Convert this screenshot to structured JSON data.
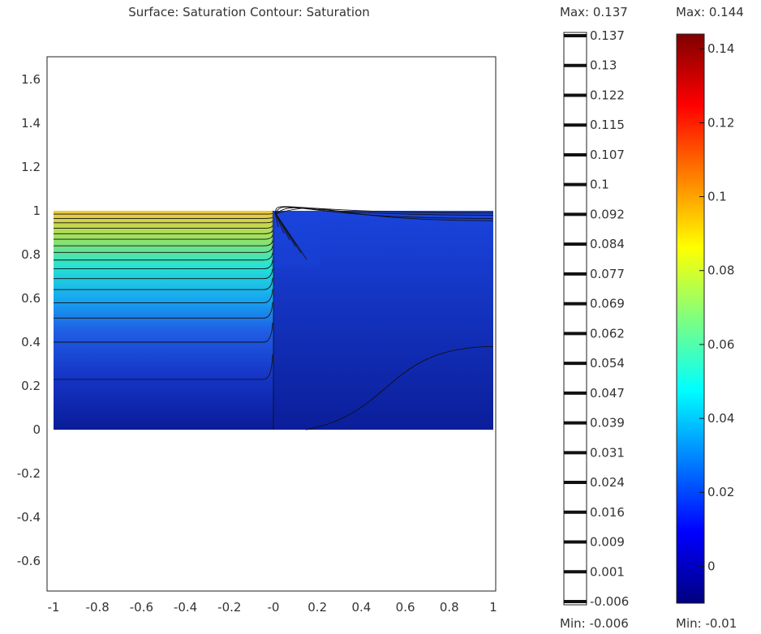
{
  "chart_data": {
    "type": "heatmap",
    "title": "Surface: Saturation   Contour: Saturation",
    "xlim": [
      -1.0,
      1.05
    ],
    "ylim": [
      -0.75,
      1.7
    ],
    "x_ticks": [
      {
        "value": -1,
        "label": "-1"
      },
      {
        "value": -0.8,
        "label": "-0.8"
      },
      {
        "value": -0.6,
        "label": "-0.6"
      },
      {
        "value": -0.4,
        "label": "-0.4"
      },
      {
        "value": -0.2,
        "label": "-0.2"
      },
      {
        "value": 0,
        "label": "-0"
      },
      {
        "value": 0.2,
        "label": "0.2"
      },
      {
        "value": 0.4,
        "label": "0.4"
      },
      {
        "value": 0.6,
        "label": "0.6"
      },
      {
        "value": 0.8,
        "label": "0.8"
      },
      {
        "value": 1,
        "label": "1"
      }
    ],
    "y_ticks": [
      {
        "value": 1.6,
        "label": "1.6"
      },
      {
        "value": 1.4,
        "label": "1.4"
      },
      {
        "value": 1.2,
        "label": "1.2"
      },
      {
        "value": 1.0,
        "label": "1"
      },
      {
        "value": 0.8,
        "label": "0.8"
      },
      {
        "value": 0.6,
        "label": "0.6"
      },
      {
        "value": 0.4,
        "label": "0.4"
      },
      {
        "value": 0.2,
        "label": "0.2"
      },
      {
        "value": 0.0,
        "label": "0"
      },
      {
        "value": -0.2,
        "label": "-0.2"
      },
      {
        "value": -0.4,
        "label": "-0.4"
      },
      {
        "value": -0.6,
        "label": "-0.6"
      }
    ],
    "domain": {
      "x": [
        -1,
        1
      ],
      "y": [
        0,
        1
      ]
    },
    "left_region_contour_heights": [
      0.985,
      0.965,
      0.945,
      0.92,
      0.895,
      0.87,
      0.84,
      0.81,
      0.775,
      0.735,
      0.69,
      0.64,
      0.58,
      0.51,
      0.4,
      0.23
    ],
    "right_region_contours": [
      {
        "start_y": 0.98,
        "end_y": 0.99,
        "knee_x": 0.02
      },
      {
        "start_y": 0.96,
        "end_y": 0.98,
        "knee_x": 0.05
      },
      {
        "start_y": 0.92,
        "end_y": 0.965,
        "knee_x": 0.12
      },
      {
        "start_y": 0.85,
        "end_y": 0.955,
        "knee_x": 0.25
      },
      {
        "start_y": 0.6,
        "end_y": 0.38,
        "knee_x": 0.55
      }
    ],
    "contour_legend": {
      "max_label": "Max: 0.137",
      "min_label": "Min: -0.006",
      "levels": [
        "0.137",
        "0.13",
        "0.122",
        "0.115",
        "0.107",
        "0.1",
        "0.092",
        "0.084",
        "0.077",
        "0.069",
        "0.062",
        "0.054",
        "0.047",
        "0.039",
        "0.031",
        "0.024",
        "0.016",
        "0.009",
        "0.001",
        "-0.006"
      ]
    },
    "colorbar": {
      "max_label": "Max: 0.144",
      "min_label": "Min: -0.01",
      "range": [
        -0.01,
        0.144
      ],
      "ticks": [
        {
          "value": 0.14,
          "label": "0.14"
        },
        {
          "value": 0.12,
          "label": "0.12"
        },
        {
          "value": 0.1,
          "label": "0.1"
        },
        {
          "value": 0.08,
          "label": "0.08"
        },
        {
          "value": 0.06,
          "label": "0.06"
        },
        {
          "value": 0.04,
          "label": "0.04"
        },
        {
          "value": 0.02,
          "label": "0.02"
        },
        {
          "value": 0,
          "label": "0"
        }
      ],
      "colors": [
        "#00007f",
        "#0000ff",
        "#007fff",
        "#00ffff",
        "#7fff7f",
        "#ffff00",
        "#ff7f00",
        "#ff0000",
        "#7f0000"
      ]
    },
    "field_colors": {
      "top_left": "#f2c83c",
      "left_band_1": "#9ee25e",
      "left_band_2": "#25e4d4",
      "left_band_3": "#16a8f0",
      "left_band_4": "#1f5ee4",
      "left_band_5": "#1636c8",
      "bottom": "#0a1c98",
      "right_top": "#1a44dc",
      "right_bottom": "#0b1e9a"
    }
  }
}
